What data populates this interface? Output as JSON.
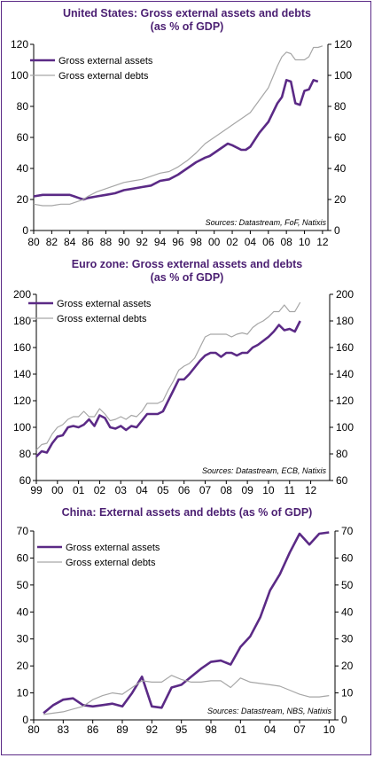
{
  "colors": {
    "title": "#4b1f72",
    "assets": "#5b2a86",
    "debts": "#a6a6a6",
    "axis": "#000000",
    "border": "#5b2a86"
  },
  "chart_data": [
    {
      "type": "line",
      "title": "United States: Gross external assets and debts",
      "subtitle": "(as % of GDP)",
      "source": "Sources: Datastream, FoF, Natixis",
      "xlim": [
        1980,
        2012.6
      ],
      "xticks": [
        1980,
        1982,
        1984,
        1986,
        1988,
        1990,
        1992,
        1994,
        1996,
        1998,
        2000,
        2002,
        2004,
        2006,
        2008,
        2010,
        2012
      ],
      "xticklabels": [
        "80",
        "82",
        "84",
        "86",
        "88",
        "90",
        "92",
        "94",
        "96",
        "98",
        "00",
        "02",
        "04",
        "06",
        "08",
        "10",
        "12"
      ],
      "ylim": [
        0,
        120
      ],
      "yticks": [
        0,
        20,
        40,
        60,
        80,
        100,
        120
      ],
      "yticklabels": [
        "0",
        "20",
        "40",
        "60",
        "80",
        "100",
        "120"
      ],
      "legend_position": "top-left",
      "series": [
        {
          "name": "Gross external assets",
          "x": [
            1980,
            1981,
            1982,
            1983,
            1984,
            1984.5,
            1985,
            1985.5,
            1986,
            1987,
            1988,
            1989,
            1990,
            1991,
            1992,
            1993,
            1994,
            1995,
            1996,
            1997,
            1998,
            1999,
            1999.5,
            2000,
            2001,
            2001.5,
            2002,
            2003,
            2003.5,
            2004,
            2005,
            2006,
            2007,
            2007.5,
            2008,
            2008.5,
            2009,
            2009.5,
            2010,
            2010.5,
            2011,
            2011.5
          ],
          "y": [
            22,
            23,
            23,
            23,
            23,
            22,
            21,
            20,
            21,
            22,
            23,
            24,
            26,
            27,
            28,
            29,
            32,
            33,
            36,
            40,
            44,
            47,
            48,
            50,
            54,
            56,
            55,
            52,
            52,
            54,
            63,
            70,
            82,
            86,
            97,
            96,
            82,
            81,
            90,
            91,
            97,
            96
          ]
        },
        {
          "name": "Gross external debts",
          "x": [
            1980,
            1981,
            1982,
            1983,
            1984,
            1985,
            1985.5,
            1986,
            1987,
            1988,
            1989,
            1990,
            1991,
            1992,
            1993,
            1994,
            1995,
            1996,
            1997,
            1998,
            1999,
            2000,
            2001,
            2002,
            2003,
            2004,
            2005,
            2006,
            2007,
            2007.5,
            2008,
            2008.5,
            2009,
            2010,
            2010.5,
            2011,
            2011.5,
            2012
          ],
          "y": [
            17,
            16,
            16,
            17,
            17,
            19,
            20,
            22,
            25,
            27,
            29,
            31,
            32,
            33,
            35,
            37,
            38,
            41,
            45,
            50,
            56,
            60,
            64,
            68,
            72,
            76,
            84,
            92,
            106,
            112,
            115,
            114,
            110,
            110,
            112,
            118,
            118,
            119
          ]
        }
      ]
    },
    {
      "type": "line",
      "title": "Euro zone: Gross external assets and debts",
      "subtitle": "(as % of GDP)",
      "source": "Sources: Datastream, ECB, Natixis",
      "xlim": [
        1999,
        2012.9
      ],
      "xticks": [
        1999,
        2000,
        2001,
        2002,
        2003,
        2004,
        2005,
        2006,
        2007,
        2008,
        2009,
        2010,
        2011,
        2012
      ],
      "xticklabels": [
        "99",
        "00",
        "01",
        "02",
        "03",
        "04",
        "05",
        "06",
        "07",
        "08",
        "09",
        "10",
        "11",
        "12"
      ],
      "ylim": [
        60,
        200
      ],
      "yticks": [
        60,
        80,
        100,
        120,
        140,
        160,
        180,
        200
      ],
      "yticklabels": [
        "60",
        "80",
        "100",
        "120",
        "140",
        "160",
        "180",
        "200"
      ],
      "legend_position": "top-left",
      "series": [
        {
          "name": "Gross external assets",
          "x": [
            1999,
            1999.25,
            1999.5,
            1999.75,
            2000,
            2000.25,
            2000.5,
            2000.75,
            2001,
            2001.25,
            2001.5,
            2001.75,
            2002,
            2002.25,
            2002.5,
            2002.75,
            2003,
            2003.25,
            2003.5,
            2003.75,
            2004,
            2004.25,
            2004.5,
            2004.75,
            2005,
            2005.25,
            2005.5,
            2005.75,
            2006,
            2006.25,
            2006.5,
            2006.75,
            2007,
            2007.25,
            2007.5,
            2007.75,
            2008,
            2008.25,
            2008.5,
            2008.75,
            2009,
            2009.25,
            2009.5,
            2009.75,
            2010,
            2010.25,
            2010.5,
            2010.75,
            2011,
            2011.25,
            2011.5
          ],
          "y": [
            78,
            82,
            81,
            88,
            93,
            94,
            100,
            101,
            100,
            102,
            106,
            101,
            109,
            107,
            100,
            99,
            101,
            98,
            101,
            100,
            105,
            110,
            110,
            110,
            112,
            120,
            128,
            136,
            136,
            140,
            145,
            150,
            154,
            156,
            156,
            153,
            156,
            156,
            154,
            156,
            156,
            160,
            162,
            165,
            168,
            172,
            177,
            173,
            174,
            172,
            180
          ]
        },
        {
          "name": "Gross external debts",
          "x": [
            1999,
            1999.25,
            1999.5,
            1999.75,
            2000,
            2000.25,
            2000.5,
            2000.75,
            2001,
            2001.25,
            2001.5,
            2001.75,
            2002,
            2002.25,
            2002.5,
            2002.75,
            2003,
            2003.25,
            2003.5,
            2003.75,
            2004,
            2004.25,
            2004.5,
            2004.75,
            2005,
            2005.25,
            2005.5,
            2005.75,
            2006,
            2006.25,
            2006.5,
            2006.75,
            2007,
            2007.25,
            2007.5,
            2007.75,
            2008,
            2008.25,
            2008.5,
            2008.75,
            2009,
            2009.25,
            2009.5,
            2009.75,
            2010,
            2010.25,
            2010.5,
            2010.75,
            2011,
            2011.25,
            2011.5
          ],
          "y": [
            83,
            87,
            88,
            95,
            100,
            102,
            106,
            108,
            108,
            112,
            108,
            108,
            114,
            110,
            105,
            106,
            108,
            106,
            109,
            108,
            112,
            118,
            118,
            118,
            120,
            128,
            135,
            143,
            146,
            148,
            152,
            160,
            168,
            170,
            170,
            170,
            170,
            168,
            170,
            171,
            170,
            175,
            178,
            180,
            183,
            187,
            187,
            192,
            187,
            187,
            194
          ]
        }
      ]
    },
    {
      "type": "line",
      "title": "China: External assets and debts (as % of GDP)",
      "source": "Sources: Datastream, NBS, Natixis",
      "xlim": [
        1980,
        2010.6
      ],
      "xticks": [
        1980,
        1983,
        1986,
        1989,
        1992,
        1995,
        1998,
        2001,
        2004,
        2007,
        2010
      ],
      "xticklabels": [
        "80",
        "83",
        "86",
        "89",
        "92",
        "95",
        "98",
        "01",
        "04",
        "07",
        "10"
      ],
      "ylim": [
        0,
        70
      ],
      "yticks": [
        0,
        10,
        20,
        30,
        40,
        50,
        60,
        70
      ],
      "yticklabels": [
        "0",
        "10",
        "20",
        "30",
        "40",
        "50",
        "60",
        "70"
      ],
      "legend_position": "top-right",
      "series": [
        {
          "name": "Gross external assets",
          "x": [
            1981,
            1982,
            1983,
            1984,
            1985,
            1986,
            1987,
            1988,
            1989,
            1990,
            1991,
            1992,
            1993,
            1994,
            1995,
            1996,
            1997,
            1998,
            1999,
            2000,
            2001,
            2002,
            2003,
            2004,
            2005,
            2006,
            2007,
            2008,
            2009,
            2010
          ],
          "y": [
            2.5,
            5.5,
            7.5,
            8,
            5.5,
            5,
            5.5,
            6,
            5,
            10,
            16,
            5,
            4.5,
            12,
            13,
            16,
            19,
            21.5,
            22,
            20.5,
            27,
            31,
            38,
            48,
            54,
            62,
            69,
            65,
            69,
            69.5
          ]
        },
        {
          "name": "Gross external debts",
          "x": [
            1981,
            1982,
            1983,
            1984,
            1985,
            1986,
            1987,
            1988,
            1989,
            1990,
            1991,
            1992,
            1993,
            1994,
            1995,
            1996,
            1997,
            1998,
            1999,
            2000,
            2001,
            2002,
            2003,
            2004,
            2005,
            2006,
            2007,
            2008,
            2009,
            2010
          ],
          "y": [
            2,
            2.5,
            3,
            4,
            5,
            7.5,
            9,
            10,
            9.5,
            12,
            14.5,
            14,
            14,
            16.5,
            15,
            14,
            14,
            14.5,
            14.5,
            12,
            15.5,
            14,
            13.5,
            13,
            12.5,
            11,
            9.5,
            8.5,
            8.5,
            9
          ]
        }
      ]
    }
  ]
}
